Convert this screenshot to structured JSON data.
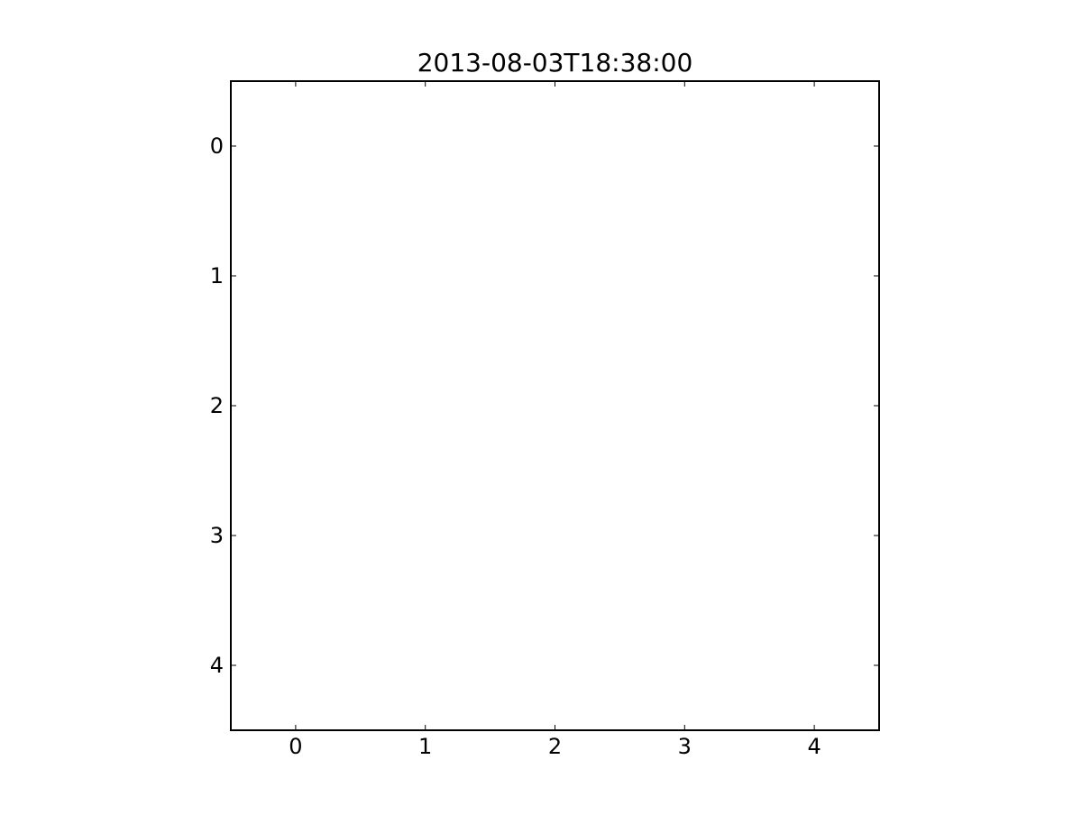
{
  "chart_data": {
    "type": "heatmap",
    "title": "2013-08-03T18:38:00",
    "xlabel": "",
    "ylabel": "",
    "x_ticks": [
      "0",
      "1",
      "2",
      "3",
      "4"
    ],
    "y_ticks": [
      "0",
      "1",
      "2",
      "3",
      "4"
    ],
    "xlim": [
      -0.5,
      4.5
    ],
    "ylim": [
      4.5,
      -0.5
    ],
    "y_inverted": true,
    "grid": false,
    "legend": "none",
    "values": [],
    "colors": {
      "background": "#ffffff",
      "axes": "#000000",
      "text": "#000000"
    }
  }
}
